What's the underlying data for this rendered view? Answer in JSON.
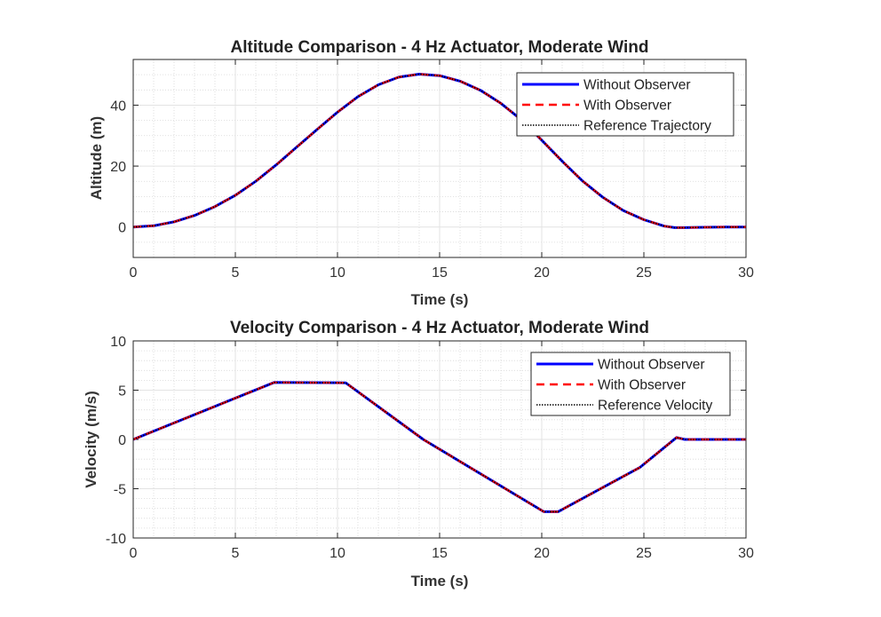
{
  "chart_data": [
    {
      "type": "line",
      "title": "Altitude Comparison - 4 Hz Actuator, Moderate Wind",
      "xlabel": "Time (s)",
      "ylabel": "Altitude (m)",
      "xlim": [
        0,
        30
      ],
      "ylim": [
        -10,
        55
      ],
      "xticks": [
        0,
        5,
        10,
        15,
        20,
        25,
        30
      ],
      "yticks": [
        0,
        20,
        40
      ],
      "grid": true,
      "minor_grid": true,
      "legend": "top-right",
      "x": [
        0,
        1,
        2,
        3,
        4,
        5,
        6,
        7,
        8,
        9,
        10,
        11,
        12,
        13,
        14,
        15,
        16,
        17,
        18,
        19,
        20,
        21,
        22,
        23,
        24,
        25,
        26,
        26.5,
        27,
        28,
        29,
        30
      ],
      "series": [
        {
          "name": "Without Observer",
          "color": "#0000ff",
          "style": "solid",
          "values": [
            0,
            0.4,
            1.7,
            3.8,
            6.7,
            10.4,
            15.0,
            20.4,
            26.2,
            32.0,
            37.7,
            42.8,
            46.7,
            49.2,
            50.2,
            49.7,
            47.9,
            44.9,
            40.6,
            35.2,
            28.5,
            21.6,
            15.1,
            9.7,
            5.4,
            2.4,
            0.3,
            -0.2,
            -0.2,
            -0.1,
            0,
            0
          ]
        },
        {
          "name": "With Observer",
          "color": "#ff0000",
          "style": "dashed",
          "values": [
            0,
            0.4,
            1.7,
            3.8,
            6.7,
            10.4,
            15.0,
            20.4,
            26.2,
            32.0,
            37.7,
            42.8,
            46.7,
            49.2,
            50.2,
            49.7,
            47.9,
            44.9,
            40.6,
            35.2,
            28.5,
            21.6,
            15.1,
            9.7,
            5.4,
            2.4,
            0.3,
            -0.2,
            -0.2,
            -0.1,
            0,
            0
          ]
        },
        {
          "name": "Reference Trajectory",
          "color": "#000000",
          "style": "dotted",
          "values": [
            0,
            0.4,
            1.7,
            3.8,
            6.7,
            10.4,
            15.0,
            20.4,
            26.2,
            32.0,
            37.7,
            42.8,
            46.7,
            49.2,
            50.2,
            49.7,
            47.9,
            44.9,
            40.6,
            35.2,
            28.5,
            21.6,
            15.1,
            9.7,
            5.4,
            2.4,
            0.3,
            -0.2,
            -0.2,
            -0.1,
            0,
            0
          ]
        }
      ]
    },
    {
      "type": "line",
      "title": "Velocity Comparison - 4 Hz Actuator, Moderate Wind",
      "xlabel": "Time (s)",
      "ylabel": "Velocity (m/s)",
      "xlim": [
        0,
        30
      ],
      "ylim": [
        -10,
        10
      ],
      "xticks": [
        0,
        5,
        10,
        15,
        20,
        25,
        30
      ],
      "yticks": [
        -10,
        -5,
        0,
        5,
        10
      ],
      "grid": true,
      "minor_grid": true,
      "legend": "top-right",
      "x": [
        0,
        6.9,
        10.4,
        14.2,
        20.1,
        20.8,
        24.8,
        26.6,
        27,
        30
      ],
      "series": [
        {
          "name": "Without Observer",
          "color": "#0000ff",
          "style": "solid",
          "values": [
            0,
            5.78,
            5.75,
            0,
            -7.33,
            -7.33,
            -2.85,
            0.2,
            0,
            0
          ]
        },
        {
          "name": "With Observer",
          "color": "#ff0000",
          "style": "dashed",
          "values": [
            0,
            5.78,
            5.75,
            0,
            -7.33,
            -7.33,
            -2.85,
            0.2,
            0,
            0
          ]
        },
        {
          "name": "Reference Velocity",
          "color": "#000000",
          "style": "dotted",
          "values": [
            0,
            5.78,
            5.75,
            0,
            -7.33,
            -7.33,
            -2.85,
            0.2,
            0,
            0
          ]
        }
      ]
    }
  ]
}
